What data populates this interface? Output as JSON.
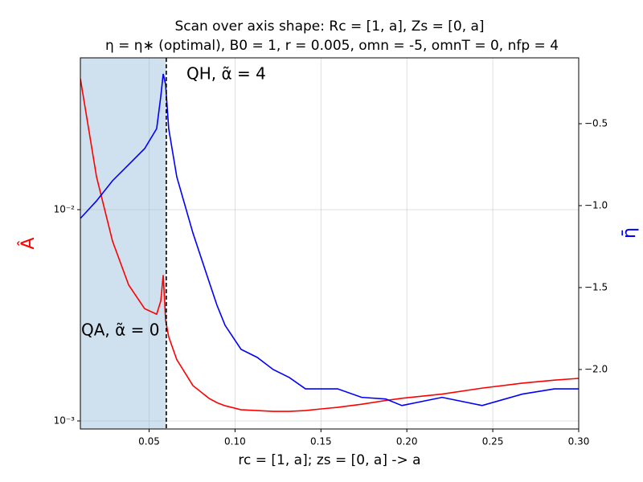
{
  "chart_data": {
    "type": "line",
    "title": "Scan over axis shape: Rc = [1, a], Zs = [0, a]",
    "subtitle": "η = η∗ (optimal),  B0 = 1, r = 0.005, omn = -5, omnT = 0, nfp = 4",
    "x_label": "rc = [1, a]; zs = [0, a] -> a",
    "y_label": "Â",
    "y2_label": "η̄",
    "annotations": [
      "QH, α̃ = 4",
      "QA, α̃ = 0"
    ],
    "span": [
      0.01,
      0.06
    ],
    "span_color": "#cfe0ee",
    "vline": 0.06,
    "x": [
      0.01,
      0.0194,
      0.0287,
      0.0381,
      0.0474,
      0.0544,
      0.0568,
      0.0582,
      0.0596,
      0.0614,
      0.0661,
      0.0755,
      0.0848,
      0.0895,
      0.0942,
      0.1035,
      0.1129,
      0.1222,
      0.1316,
      0.141,
      0.1503,
      0.1597,
      0.1737,
      0.1877,
      0.1971,
      0.2205,
      0.2438,
      0.2672,
      0.2859,
      0.3
    ],
    "series": [
      {
        "name": "Â",
        "color": "#ff0000",
        "axis": "y",
        "values": [
          0.0417,
          0.0143,
          0.0071,
          0.0044,
          0.0034,
          0.0032,
          0.0037,
          0.0049,
          0.003,
          0.0025,
          0.00195,
          0.00147,
          0.00128,
          0.00122,
          0.00118,
          0.00113,
          0.00112,
          0.00111,
          0.00111,
          0.00112,
          0.00114,
          0.00116,
          0.0012,
          0.00125,
          0.00128,
          0.00134,
          0.00143,
          0.00151,
          0.00156,
          0.00159
        ]
      },
      {
        "name": "η̄",
        "color": "#0000ff",
        "axis": "y2",
        "values": [
          -1.078,
          -0.971,
          -0.848,
          -0.75,
          -0.652,
          -0.53,
          -0.333,
          -0.196,
          -0.26,
          -0.53,
          -0.824,
          -1.167,
          -1.461,
          -1.608,
          -1.73,
          -1.877,
          -1.926,
          -2.0,
          -2.049,
          -2.118,
          -2.118,
          -2.118,
          -2.17,
          -2.18,
          -2.22,
          -2.17,
          -2.22,
          -2.15,
          -2.118,
          -2.118
        ]
      }
    ],
    "xlim": [
      0.01,
      0.3
    ],
    "xticks": [
      0.05,
      {
        "value": 0.1,
        "label": "0.10"
      },
      0.15,
      {
        "value": 0.2,
        "label": "0.20"
      },
      0.25,
      {
        "value": 0.3,
        "label": "0.30"
      }
    ],
    "ylim": [
      0.000916,
      0.0523
    ],
    "yscale": "log",
    "yticks": [
      {
        "value": 0.001,
        "label": "10⁻³"
      },
      {
        "value": 0.01,
        "label": "10⁻²"
      }
    ],
    "y2lim": [
      -2.363,
      -0.098
    ],
    "y2ticks": [
      {
        "value": -2.0,
        "label": "−2.0"
      },
      {
        "value": -1.5,
        "label": "−1.5"
      },
      {
        "value": -1.0,
        "label": "−1.0"
      },
      {
        "value": -0.5,
        "label": "−0.5"
      }
    ],
    "grid": true
  }
}
